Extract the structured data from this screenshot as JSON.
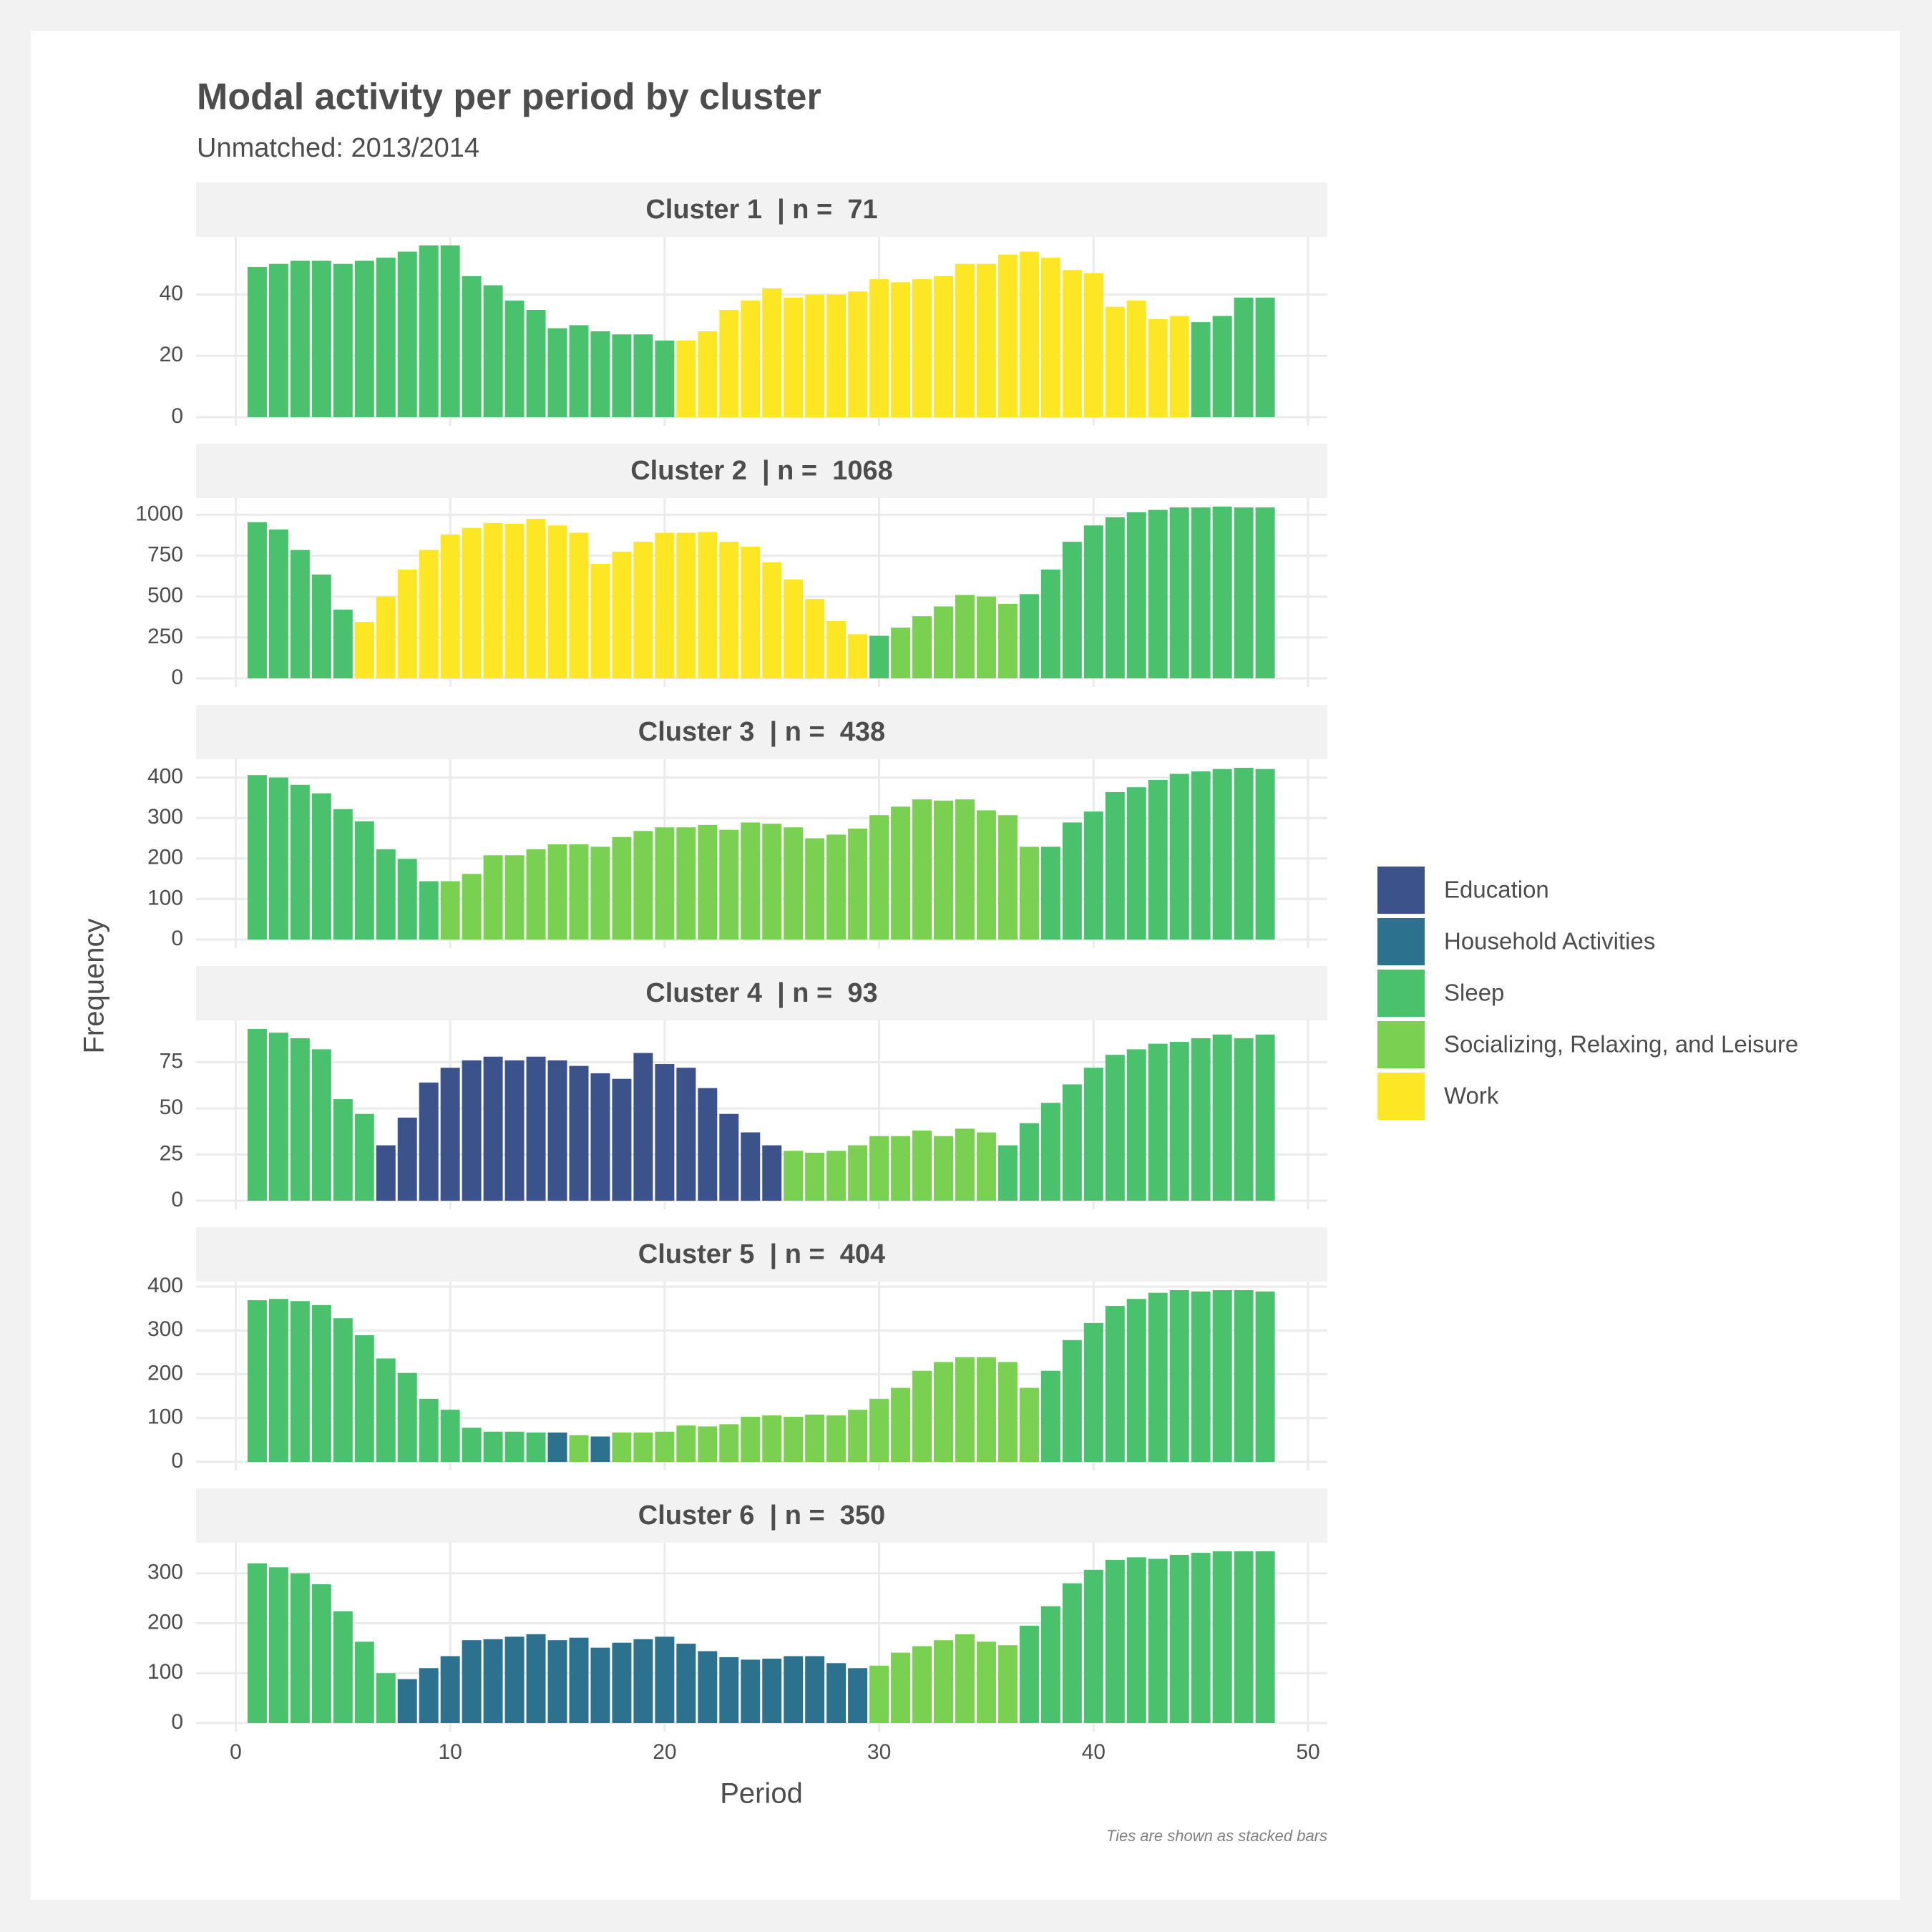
{
  "chart_data": {
    "type": "bar",
    "title": "Modal activity per period by cluster",
    "subtitle": "Unmatched: 2013/2014",
    "x_label": "Period",
    "y_label": "Frequency",
    "caption": "Ties are shown as stacked bars",
    "grid": true,
    "legend_position": "right",
    "legend": [
      {
        "name": "Education",
        "color": "#3b528b"
      },
      {
        "name": "Household Activities",
        "color": "#2c728e"
      },
      {
        "name": "Sleep",
        "color": "#4ac16d"
      },
      {
        "name": "Socializing, Relaxing, and Leisure",
        "color": "#7ad151"
      },
      {
        "name": "Work",
        "color": "#fde725"
      }
    ],
    "xlim": [
      -1.85,
      50.9
    ],
    "xticks": [
      0,
      10,
      20,
      30,
      40,
      50
    ],
    "x": [
      1,
      2,
      3,
      4,
      5,
      6,
      7,
      8,
      9,
      10,
      11,
      12,
      13,
      14,
      15,
      16,
      17,
      18,
      19,
      20,
      21,
      22,
      23,
      24,
      25,
      26,
      27,
      28,
      29,
      30,
      31,
      32,
      33,
      34,
      35,
      36,
      37,
      38,
      39,
      40,
      41,
      42,
      43,
      44,
      45,
      46,
      47,
      48
    ],
    "facets": [
      {
        "title": "Cluster 1  | n =  71",
        "ylim": [
          -2.8,
          58.8
        ],
        "yticks": [
          0,
          20,
          40
        ],
        "values": [
          49,
          50,
          51,
          51,
          50,
          51,
          52,
          54,
          56,
          56,
          46,
          43,
          38,
          35,
          29,
          30,
          28,
          27,
          27,
          25,
          25,
          28,
          35,
          38,
          42,
          39,
          40,
          40,
          41,
          45,
          44,
          45,
          46,
          50,
          50,
          53,
          54,
          52,
          48,
          47,
          36,
          38,
          32,
          33,
          31,
          33,
          39,
          39
        ],
        "colors": [
          "#4ac16d",
          "#4ac16d",
          "#4ac16d",
          "#4ac16d",
          "#4ac16d",
          "#4ac16d",
          "#4ac16d",
          "#4ac16d",
          "#4ac16d",
          "#4ac16d",
          "#4ac16d",
          "#4ac16d",
          "#4ac16d",
          "#4ac16d",
          "#4ac16d",
          "#4ac16d",
          "#4ac16d",
          "#4ac16d",
          "#4ac16d",
          "#4ac16d",
          "#fde725",
          "#fde725",
          "#fde725",
          "#fde725",
          "#fde725",
          "#fde725",
          "#fde725",
          "#fde725",
          "#fde725",
          "#fde725",
          "#fde725",
          "#fde725",
          "#fde725",
          "#fde725",
          "#fde725",
          "#fde725",
          "#fde725",
          "#fde725",
          "#fde725",
          "#fde725",
          "#fde725",
          "#fde725",
          "#fde725",
          "#fde725",
          "#4ac16d",
          "#4ac16d",
          "#4ac16d",
          "#4ac16d"
        ]
      },
      {
        "title": "Cluster 2  | n =  1068",
        "ylim": [
          -52.5,
          1102.5
        ],
        "yticks": [
          0,
          250,
          500,
          750,
          1000
        ],
        "values": [
          955,
          910,
          785,
          635,
          420,
          345,
          500,
          665,
          785,
          880,
          920,
          950,
          945,
          975,
          935,
          890,
          700,
          775,
          835,
          890,
          890,
          895,
          835,
          805,
          710,
          605,
          485,
          350,
          270,
          260,
          310,
          380,
          440,
          510,
          500,
          455,
          515,
          665,
          835,
          935,
          985,
          1015,
          1030,
          1045,
          1045,
          1050,
          1045,
          1045
        ],
        "colors": [
          "#4ac16d",
          "#4ac16d",
          "#4ac16d",
          "#4ac16d",
          "#4ac16d",
          "#fde725",
          "#fde725",
          "#fde725",
          "#fde725",
          "#fde725",
          "#fde725",
          "#fde725",
          "#fde725",
          "#fde725",
          "#fde725",
          "#fde725",
          "#fde725",
          "#fde725",
          "#fde725",
          "#fde725",
          "#fde725",
          "#fde725",
          "#fde725",
          "#fde725",
          "#fde725",
          "#fde725",
          "#fde725",
          "#fde725",
          "#fde725",
          "#4ac16d",
          "#7ad151",
          "#7ad151",
          "#7ad151",
          "#7ad151",
          "#7ad151",
          "#7ad151",
          "#4ac16d",
          "#4ac16d",
          "#4ac16d",
          "#4ac16d",
          "#4ac16d",
          "#4ac16d",
          "#4ac16d",
          "#4ac16d",
          "#4ac16d",
          "#4ac16d",
          "#4ac16d",
          "#4ac16d"
        ]
      },
      {
        "title": "Cluster 3  | n =  438",
        "ylim": [
          -21.2,
          445.2
        ],
        "yticks": [
          0,
          100,
          200,
          300,
          400
        ],
        "values": [
          406,
          400,
          382,
          361,
          322,
          292,
          223,
          199,
          144,
          144,
          162,
          208,
          208,
          223,
          235,
          235,
          229,
          253,
          268,
          277,
          277,
          283,
          271,
          289,
          286,
          277,
          250,
          259,
          274,
          307,
          328,
          346,
          343,
          346,
          319,
          307,
          229,
          229,
          289,
          316,
          364,
          376,
          394,
          409,
          415,
          421,
          424,
          421
        ],
        "colors": [
          "#4ac16d",
          "#4ac16d",
          "#4ac16d",
          "#4ac16d",
          "#4ac16d",
          "#4ac16d",
          "#4ac16d",
          "#4ac16d",
          "#4ac16d",
          "#7ad151",
          "#7ad151",
          "#7ad151",
          "#7ad151",
          "#7ad151",
          "#7ad151",
          "#7ad151",
          "#7ad151",
          "#7ad151",
          "#7ad151",
          "#7ad151",
          "#7ad151",
          "#7ad151",
          "#7ad151",
          "#7ad151",
          "#7ad151",
          "#7ad151",
          "#7ad151",
          "#7ad151",
          "#7ad151",
          "#7ad151",
          "#7ad151",
          "#7ad151",
          "#7ad151",
          "#7ad151",
          "#7ad151",
          "#7ad151",
          "#7ad151",
          "#4ac16d",
          "#4ac16d",
          "#4ac16d",
          "#4ac16d",
          "#4ac16d",
          "#4ac16d",
          "#4ac16d",
          "#4ac16d",
          "#4ac16d",
          "#4ac16d",
          "#4ac16d"
        ]
      },
      {
        "title": "Cluster 4  | n =  93",
        "ylim": [
          -4.65,
          97.65
        ],
        "yticks": [
          0,
          25,
          50,
          75
        ],
        "values": [
          93,
          91,
          88,
          82,
          55,
          47,
          30,
          45,
          64,
          72,
          76,
          78,
          76,
          78,
          76,
          73,
          69,
          66,
          80,
          74,
          72,
          61,
          47,
          37,
          30,
          27,
          26,
          27,
          30,
          35,
          35,
          38,
          35,
          39,
          37,
          30,
          42,
          53,
          63,
          72,
          79,
          82,
          85,
          86,
          88,
          90,
          88,
          90
        ],
        "colors": [
          "#4ac16d",
          "#4ac16d",
          "#4ac16d",
          "#4ac16d",
          "#4ac16d",
          "#4ac16d",
          "#3b528b",
          "#3b528b",
          "#3b528b",
          "#3b528b",
          "#3b528b",
          "#3b528b",
          "#3b528b",
          "#3b528b",
          "#3b528b",
          "#3b528b",
          "#3b528b",
          "#3b528b",
          "#3b528b",
          "#3b528b",
          "#3b528b",
          "#3b528b",
          "#3b528b",
          "#3b528b",
          "#3b528b",
          "#7ad151",
          "#7ad151",
          "#7ad151",
          "#7ad151",
          "#7ad151",
          "#7ad151",
          "#7ad151",
          "#7ad151",
          "#7ad151",
          "#7ad151",
          "#4ac16d",
          "#4ac16d",
          "#4ac16d",
          "#4ac16d",
          "#4ac16d",
          "#4ac16d",
          "#4ac16d",
          "#4ac16d",
          "#4ac16d",
          "#4ac16d",
          "#4ac16d",
          "#4ac16d",
          "#4ac16d"
        ]
      },
      {
        "title": "Cluster 5  | n =  404",
        "ylim": [
          -19.6,
          411.6
        ],
        "yticks": [
          0,
          100,
          200,
          300,
          400
        ],
        "values": [
          369,
          372,
          367,
          358,
          328,
          289,
          236,
          203,
          144,
          119,
          78,
          69,
          69,
          67,
          67,
          61,
          58,
          67,
          67,
          69,
          83,
          81,
          86,
          103,
          106,
          103,
          108,
          106,
          119,
          144,
          169,
          208,
          228,
          239,
          239,
          228,
          169,
          208,
          278,
          317,
          356,
          372,
          386,
          392,
          389,
          392,
          392,
          389
        ],
        "colors": [
          "#4ac16d",
          "#4ac16d",
          "#4ac16d",
          "#4ac16d",
          "#4ac16d",
          "#4ac16d",
          "#4ac16d",
          "#4ac16d",
          "#4ac16d",
          "#4ac16d",
          "#4ac16d",
          "#4ac16d",
          "#4ac16d",
          "#4ac16d",
          "#2c728e",
          "#7ad151",
          "#2c728e",
          "#7ad151",
          "#7ad151",
          "#7ad151",
          "#7ad151",
          "#7ad151",
          "#7ad151",
          "#7ad151",
          "#7ad151",
          "#7ad151",
          "#7ad151",
          "#7ad151",
          "#7ad151",
          "#7ad151",
          "#7ad151",
          "#7ad151",
          "#7ad151",
          "#7ad151",
          "#7ad151",
          "#7ad151",
          "#7ad151",
          "#4ac16d",
          "#4ac16d",
          "#4ac16d",
          "#4ac16d",
          "#4ac16d",
          "#4ac16d",
          "#4ac16d",
          "#4ac16d",
          "#4ac16d",
          "#4ac16d",
          "#4ac16d"
        ]
      },
      {
        "title": "Cluster 6  | n =  350",
        "ylim": [
          -17.2,
          361.2
        ],
        "yticks": [
          0,
          100,
          200,
          300
        ],
        "values": [
          320,
          312,
          300,
          278,
          224,
          163,
          100,
          88,
          110,
          134,
          166,
          168,
          173,
          178,
          166,
          171,
          151,
          161,
          168,
          173,
          159,
          144,
          132,
          127,
          129,
          134,
          134,
          120,
          110,
          115,
          141,
          154,
          166,
          178,
          163,
          156,
          195,
          234,
          280,
          307,
          327,
          332,
          329,
          337,
          341,
          344,
          344,
          344
        ],
        "colors": [
          "#4ac16d",
          "#4ac16d",
          "#4ac16d",
          "#4ac16d",
          "#4ac16d",
          "#4ac16d",
          "#4ac16d",
          "#2c728e",
          "#2c728e",
          "#2c728e",
          "#2c728e",
          "#2c728e",
          "#2c728e",
          "#2c728e",
          "#2c728e",
          "#2c728e",
          "#2c728e",
          "#2c728e",
          "#2c728e",
          "#2c728e",
          "#2c728e",
          "#2c728e",
          "#2c728e",
          "#2c728e",
          "#2c728e",
          "#2c728e",
          "#2c728e",
          "#2c728e",
          "#2c728e",
          "#7ad151",
          "#7ad151",
          "#7ad151",
          "#7ad151",
          "#7ad151",
          "#7ad151",
          "#7ad151",
          "#4ac16d",
          "#4ac16d",
          "#4ac16d",
          "#4ac16d",
          "#4ac16d",
          "#4ac16d",
          "#4ac16d",
          "#4ac16d",
          "#4ac16d",
          "#4ac16d",
          "#4ac16d",
          "#4ac16d"
        ]
      }
    ]
  }
}
